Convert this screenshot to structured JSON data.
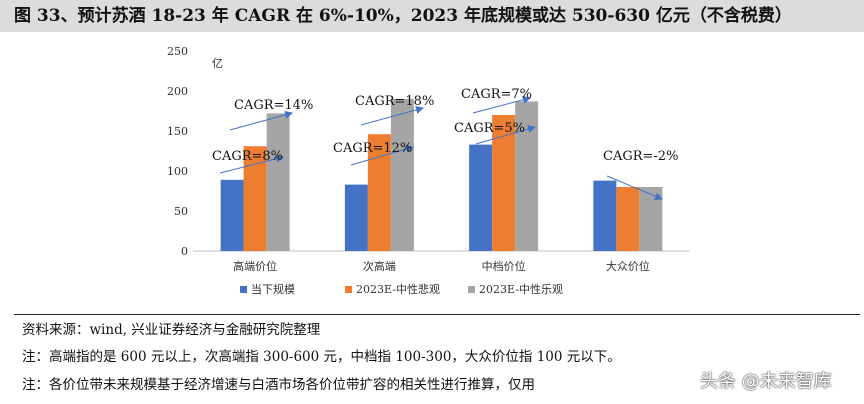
{
  "title": "图 33、预计苏酒 18-23 年 CAGR 在 6%-10%，2023 年底规模或达 530-630 亿元（不含税费）",
  "chart_data": {
    "type": "bar",
    "title": "",
    "unit_label": "亿",
    "categories": [
      "高端价位",
      "次高端",
      "中档价位",
      "大众价位"
    ],
    "series": [
      {
        "name": "当下规模",
        "color": "#4472C4",
        "values": [
          89,
          83,
          133,
          88
        ]
      },
      {
        "name": "2023E-中性悲观",
        "color": "#ED7D31",
        "values": [
          131,
          146,
          170,
          80
        ]
      },
      {
        "name": "2023E-中性乐观",
        "color": "#A5A5A5",
        "values": [
          172,
          190,
          187,
          80
        ]
      }
    ],
    "ylim": [
      0,
      250
    ],
    "yticks": [
      0,
      50,
      100,
      150,
      200,
      250
    ],
    "grid": false,
    "legend": "bottom",
    "annotations": [
      "CAGR=8%",
      "CAGR=14%",
      "CAGR=12%",
      "CAGR=18%",
      "CAGR=5%",
      "CAGR=7%",
      "CAGR=-2%"
    ],
    "arrow_color": "#4472C4"
  },
  "footer": {
    "source": "资料来源：wind, 兴业证券经济与金融研究院整理",
    "note1": "注：高端指的是 600 元以上，次高端指 300-600 元，中档指 100-300，大众价位指 100 元以下。",
    "note2": "注：各价位带未来规模基于经济增速与白酒市场各价位带扩容的相关性进行推算，仅用"
  },
  "watermark": "头条 @未来智库"
}
